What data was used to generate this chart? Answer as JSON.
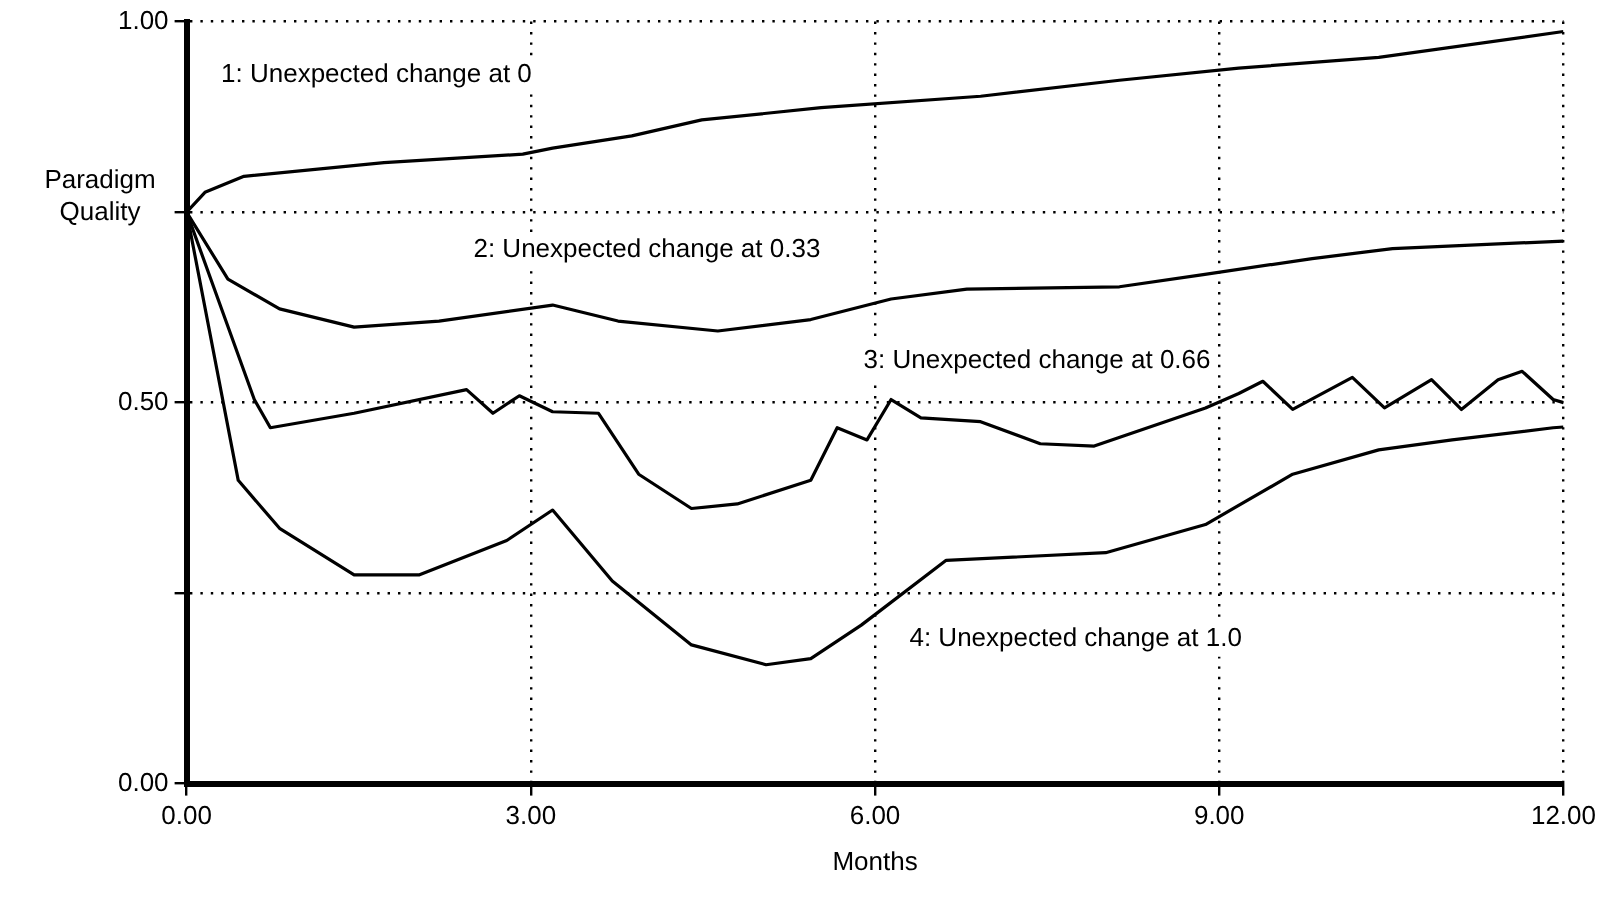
{
  "chart_data": {
    "type": "line",
    "xlabel": "Months",
    "ylabel": "Paradigm Quality",
    "xlim": [
      0,
      12
    ],
    "xticks": [
      {
        "value": 0,
        "label": "0.00"
      },
      {
        "value": 3,
        "label": "3.00"
      },
      {
        "value": 6,
        "label": "6.00"
      },
      {
        "value": 9,
        "label": "9.00"
      },
      {
        "value": 12,
        "label": "12.00"
      }
    ],
    "ylim": [
      0,
      1
    ],
    "yticks": [
      {
        "value": 0,
        "label": "0.00"
      },
      {
        "value": 0.25,
        "label": null
      },
      {
        "value": 0.5,
        "label": "0.50"
      },
      {
        "value": 0.75,
        "label": null
      },
      {
        "value": 1,
        "label": "1.00"
      }
    ],
    "grid": true,
    "legend": false,
    "marker": "none",
    "line_style": "solid",
    "series": [
      {
        "name": "1: Unexpected change at 0",
        "color": "#000000",
        "x": [
          0,
          0.16,
          0.5,
          1.72,
          2.93,
          3.19,
          3.88,
          4.49,
          5.53,
          6.92,
          8.13,
          9.17,
          10.39,
          12
        ],
        "values": [
          0.75,
          0.776,
          0.797,
          0.815,
          0.826,
          0.834,
          0.85,
          0.871,
          0.887,
          0.902,
          0.923,
          0.939,
          0.953,
          0.987
        ]
      },
      {
        "name": "2: Unexpected change at 0.33",
        "color": "#000000",
        "x": [
          0,
          0.36,
          0.81,
          1.46,
          2.2,
          3.19,
          3.76,
          4.63,
          5.44,
          6.14,
          6.8,
          8.13,
          8.86,
          9.81,
          10.51,
          12
        ],
        "values": [
          0.75,
          0.662,
          0.623,
          0.599,
          0.607,
          0.628,
          0.607,
          0.594,
          0.609,
          0.636,
          0.649,
          0.652,
          0.668,
          0.689,
          0.702,
          0.712
        ]
      },
      {
        "name": "3: Unexpected change at 0.66",
        "color": "#000000",
        "x": [
          0,
          0.59,
          0.73,
          1.46,
          2.44,
          2.67,
          2.9,
          3.19,
          3.59,
          3.94,
          4.4,
          4.8,
          5.44,
          5.67,
          5.93,
          6.14,
          6.4,
          6.92,
          7.44,
          7.91,
          8.88,
          9.17,
          9.38,
          9.64,
          10.16,
          10.44,
          10.85,
          11.11,
          11.43,
          11.64,
          11.91,
          12
        ],
        "values": [
          0.75,
          0.504,
          0.467,
          0.486,
          0.517,
          0.486,
          0.509,
          0.488,
          0.486,
          0.406,
          0.361,
          0.367,
          0.398,
          0.467,
          0.451,
          0.504,
          0.48,
          0.475,
          0.446,
          0.443,
          0.493,
          0.512,
          0.528,
          0.491,
          0.533,
          0.493,
          0.53,
          0.491,
          0.53,
          0.541,
          0.504,
          0.5
        ]
      },
      {
        "name": "4: Unexpected change at 1.0",
        "color": "#000000",
        "x": [
          0,
          0.45,
          0.81,
          1.46,
          2.03,
          2.79,
          3.19,
          3.71,
          4.4,
          5.05,
          5.44,
          5.88,
          6.62,
          8.01,
          8.88,
          9.64,
          10.39,
          11.03,
          11.91,
          12
        ],
        "values": [
          0.75,
          0.398,
          0.335,
          0.274,
          0.274,
          0.319,
          0.359,
          0.266,
          0.182,
          0.156,
          0.164,
          0.208,
          0.293,
          0.303,
          0.34,
          0.406,
          0.438,
          0.451,
          0.467,
          0.468
        ]
      }
    ]
  }
}
